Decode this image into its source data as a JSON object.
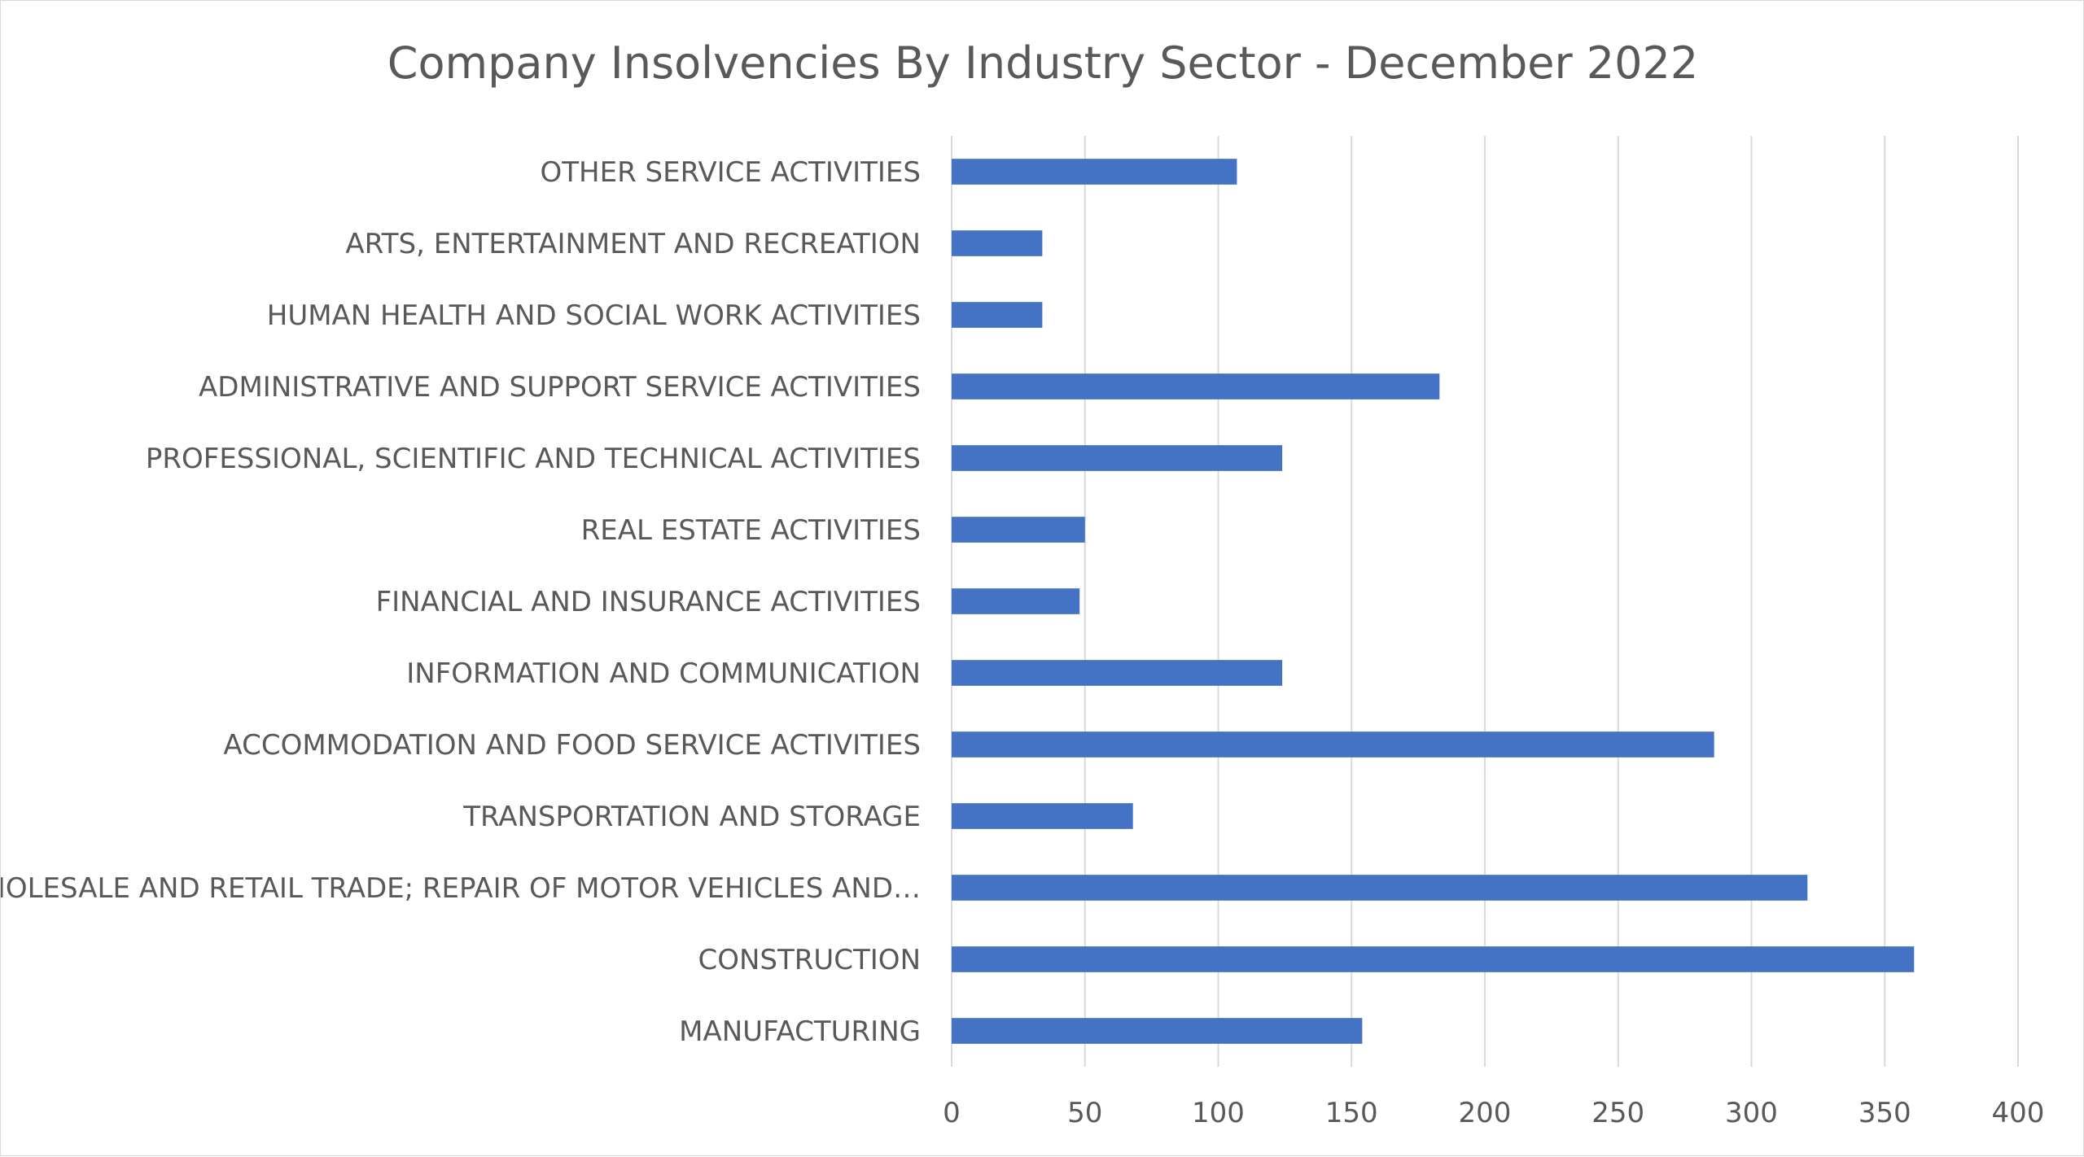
{
  "chart_data": {
    "type": "bar",
    "orientation": "horizontal",
    "title": "Company Insolvencies By Industry Sector - December 2022",
    "xlabel": "",
    "ylabel": "",
    "xlim": [
      0,
      400
    ],
    "x_ticks": [
      "0",
      "50",
      "100",
      "150",
      "200",
      "250",
      "300",
      "350",
      "400"
    ],
    "grid": true,
    "legend": "none",
    "bar_color": "#4472C4",
    "categories": [
      "OTHER SERVICE ACTIVITIES",
      "ARTS, ENTERTAINMENT AND RECREATION",
      "HUMAN HEALTH AND SOCIAL WORK ACTIVITIES",
      "ADMINISTRATIVE AND SUPPORT SERVICE ACTIVITIES",
      "PROFESSIONAL, SCIENTIFIC AND TECHNICAL ACTIVITIES",
      "REAL ESTATE ACTIVITIES",
      "FINANCIAL AND INSURANCE ACTIVITIES",
      "INFORMATION AND COMMUNICATION",
      "ACCOMMODATION AND FOOD SERVICE ACTIVITIES",
      "TRANSPORTATION AND STORAGE",
      "WHOLESALE AND RETAIL TRADE; REPAIR OF MOTOR VEHICLES AND…",
      "CONSTRUCTION",
      "MANUFACTURING"
    ],
    "values": [
      107,
      34,
      34,
      183,
      124,
      50,
      48,
      124,
      286,
      68,
      321,
      361,
      154
    ]
  }
}
